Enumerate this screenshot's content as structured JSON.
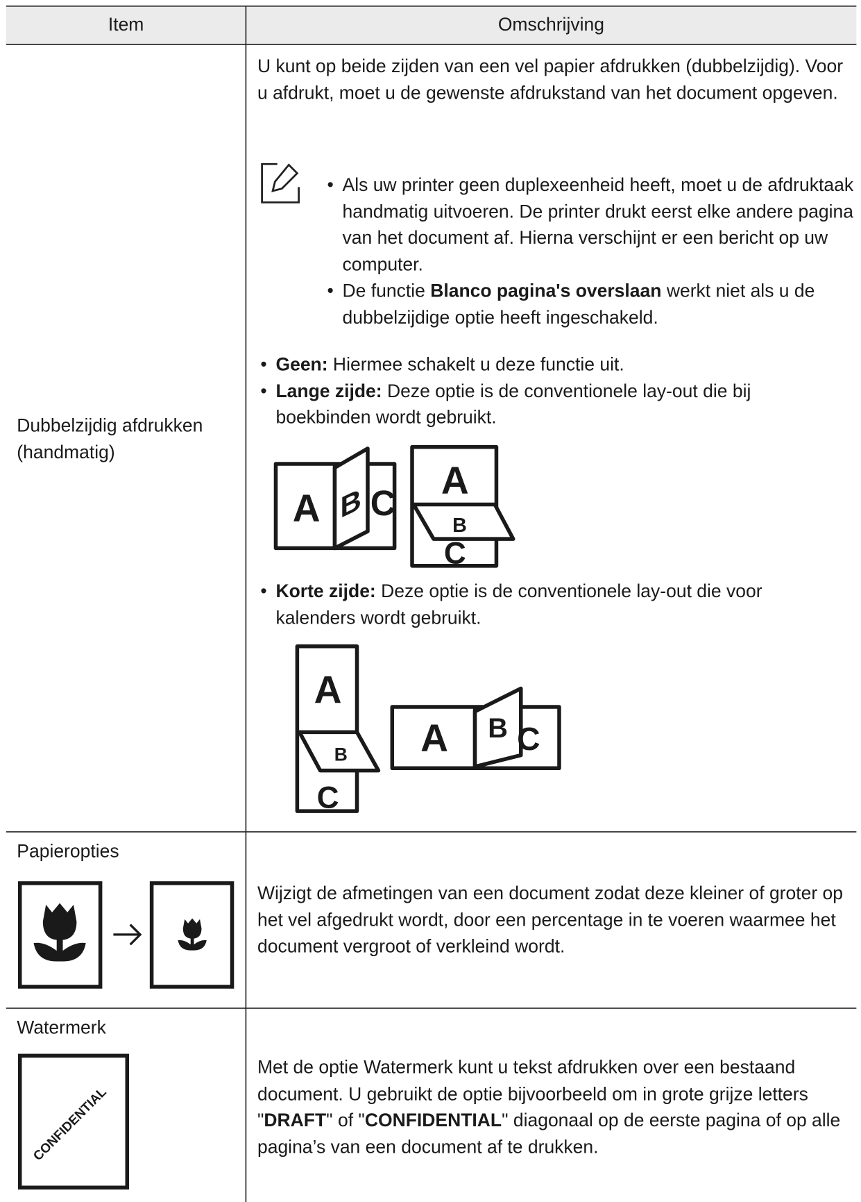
{
  "table": {
    "header": [
      "Item",
      "Omschrijving"
    ],
    "rows": [
      {
        "item": "Dubbelzijdig afdrukken (handmatig)",
        "intro": "U kunt op beide zijden van een vel papier afdrukken (dubbelzijdig). Voor u afdrukt, moet u de gewenste afdrukstand van het document opgeven.",
        "notes": [
          [
            "Als uw printer geen duplexeenheid heeft, moet u de afdruktaak handmatig uitvoeren. De printer drukt eerst elke andere pagina van het document af. Hierna verschijnt er een bericht op uw computer."
          ],
          [
            "De functie",
            "Blanco pagina's overslaan",
            "werkt niet als u de dubbelzijdige optie heeft ingeschakeld."
          ]
        ],
        "options": [
          {
            "label": "Geen:",
            "text": "Hiermee schakelt u deze functie uit."
          },
          {
            "label": "Lange zijde:",
            "text": "Deze optie is de conventionele lay-out die bij boekbinden wordt gebruikt."
          },
          {
            "label": "Korte zijde:",
            "text": "Deze optie is de conventionele lay-out die voor kalenders wordt gebruikt."
          }
        ],
        "illustration_letters": [
          "A",
          "B",
          "C"
        ]
      },
      {
        "item": "Papieropties",
        "description": "Wijzigt de afmetingen van een document zodat deze kleiner of groter op het vel afgedrukt wordt, door een percentage in te voeren waarmee het document vergroot of verkleind wordt."
      },
      {
        "item": "Watermerk",
        "description": [
          "Met de optie Watermerk kunt u tekst afdrukken over een bestaand document. U gebruikt de optie bijvoorbeeld om in grote grijze letters \"",
          "DRAFT",
          "\" of \"",
          "CONFIDENTIAL",
          "\" diagonaal op de eerste pagina of op alle pagina’s van een document af te drukken."
        ],
        "illustration_text": "CONFIDENTIAL"
      }
    ]
  }
}
